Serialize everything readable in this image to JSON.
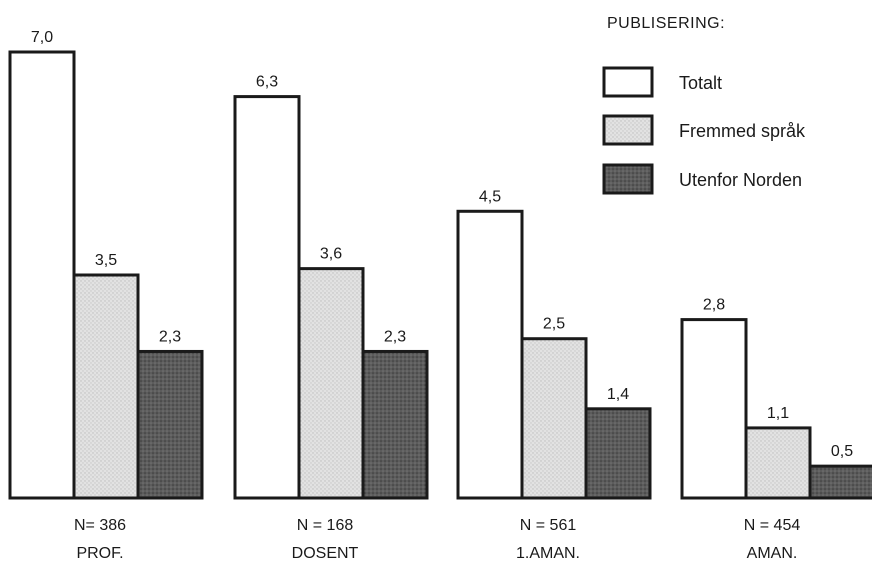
{
  "chart_data": {
    "type": "bar",
    "legend": {
      "title": "PUBLISERING:",
      "placement": "top-right"
    },
    "categories": [
      {
        "label": "PROF.",
        "n_label": "N= 386"
      },
      {
        "label": "DOSENT",
        "n_label": "N = 168"
      },
      {
        "label": "1.AMAN.",
        "n_label": "N = 561"
      },
      {
        "label": "AMAN.",
        "n_label": "N = 454"
      }
    ],
    "series": [
      {
        "name": "Totalt",
        "color": "#ffffff",
        "values": [
          7.0,
          6.3,
          4.5,
          2.8
        ],
        "value_labels": [
          "7,0",
          "6,3",
          "4,5",
          "2,8"
        ]
      },
      {
        "name": "Fremmed språk",
        "color": "#dcdcdc",
        "values": [
          3.5,
          3.6,
          2.5,
          1.1
        ],
        "value_labels": [
          "3,5",
          "3,6",
          "2,5",
          "1,1"
        ]
      },
      {
        "name": "Utenfor Norden",
        "color": "#5a5a5a",
        "values": [
          2.3,
          2.3,
          1.4,
          0.5
        ],
        "value_labels": [
          "2,3",
          "2,3",
          "1,4",
          "0,5"
        ]
      }
    ],
    "ylim": [
      0,
      7.0
    ],
    "grid": false
  }
}
